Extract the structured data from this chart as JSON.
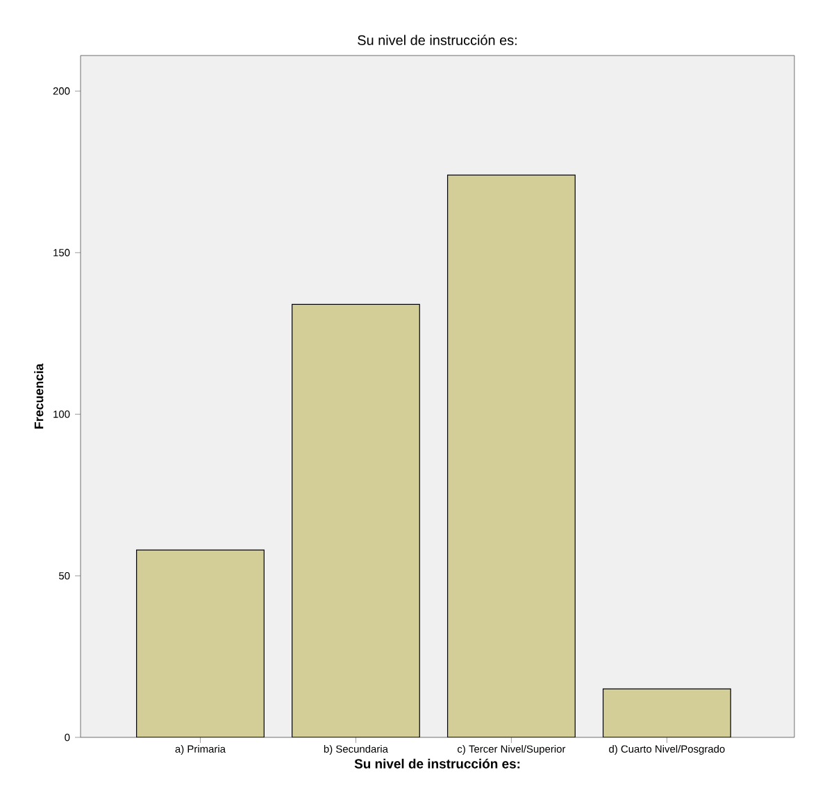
{
  "chart_data": {
    "type": "bar",
    "title": "Su nivel de instrucción es:",
    "xlabel": "Su nivel de instrucción es:",
    "ylabel": "Frecuencia",
    "categories": [
      "a) Primaria",
      "b) Secundaria",
      "c) Tercer Nivel/Superior",
      "d) Cuarto Nivel/Posgrado"
    ],
    "values": [
      58,
      134,
      174,
      15
    ],
    "color": "#d3ce98",
    "ylim": [
      0,
      211
    ],
    "yticks": [
      0,
      50,
      100,
      150,
      200
    ]
  }
}
